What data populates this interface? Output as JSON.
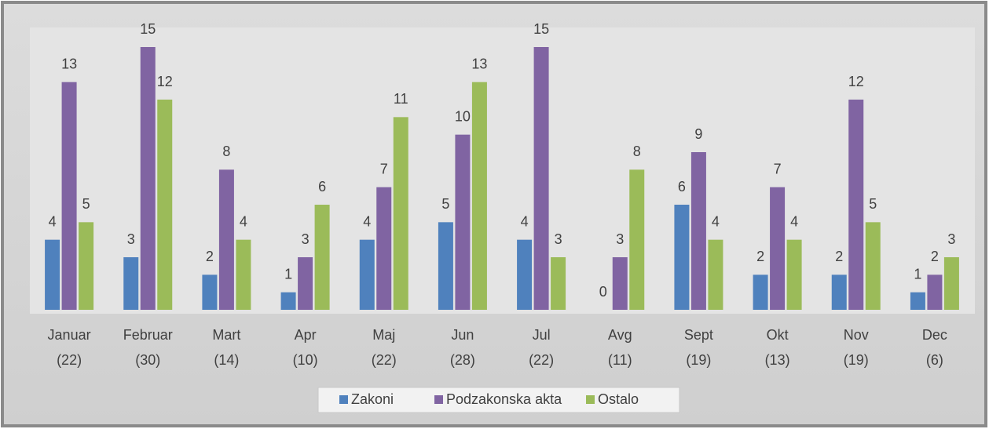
{
  "chart_data": {
    "type": "bar",
    "categories": [
      [
        "Januar",
        "(22)"
      ],
      [
        "Februar",
        "(30)"
      ],
      [
        "Mart",
        "(14)"
      ],
      [
        "Apr",
        "(10)"
      ],
      [
        "Maj",
        "(22)"
      ],
      [
        "Jun",
        "(28)"
      ],
      [
        "Jul",
        "(22)"
      ],
      [
        "Avg",
        "(11)"
      ],
      [
        "Sept",
        "(19)"
      ],
      [
        "Okt",
        "(13)"
      ],
      [
        "Nov",
        "(19)"
      ],
      [
        "Dec",
        "(6)"
      ]
    ],
    "series": [
      {
        "name": "Zakoni",
        "color": "#4f81bd",
        "values": [
          4,
          3,
          2,
          1,
          4,
          5,
          4,
          0,
          6,
          2,
          2,
          1
        ]
      },
      {
        "name": "Podzakonska akta",
        "color": "#8064a2",
        "values": [
          13,
          15,
          8,
          3,
          7,
          10,
          15,
          3,
          9,
          7,
          12,
          2
        ]
      },
      {
        "name": "Ostalo",
        "color": "#9bbb59",
        "values": [
          5,
          12,
          4,
          6,
          11,
          13,
          3,
          8,
          4,
          4,
          5,
          3
        ]
      }
    ],
    "ylim": [
      0,
      15
    ],
    "legend": "bottom"
  }
}
